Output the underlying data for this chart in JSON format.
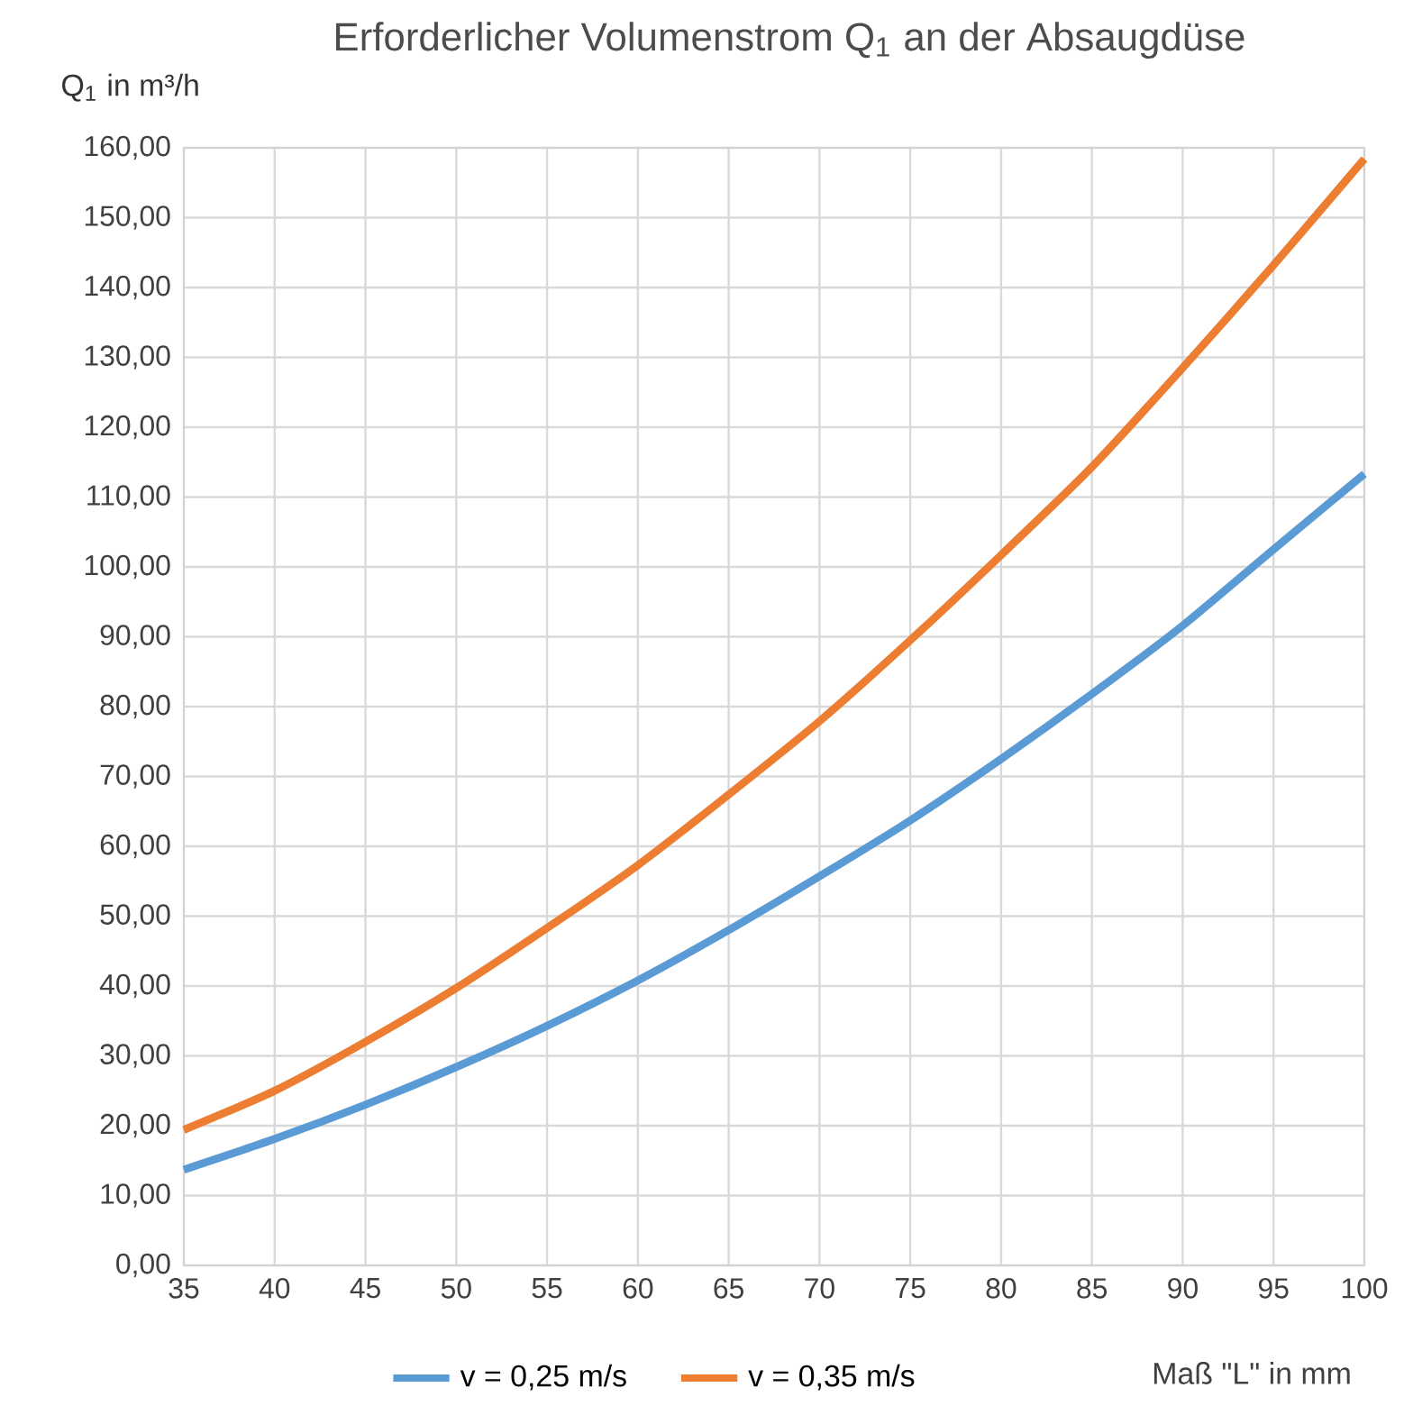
{
  "chart_data": {
    "type": "line",
    "title": "Erforderlicher Volumenstrom Q$_{1}$ an der Absaugdüse",
    "ylabel": "Q$_{1}$ in m³/h",
    "xlabel": "Maß \"L\" in mm",
    "x": [
      35,
      40,
      45,
      50,
      55,
      60,
      65,
      70,
      75,
      80,
      85,
      90,
      95,
      100
    ],
    "series": [
      {
        "name": "v = 0,25 m/s",
        "color": "#5b9bd5",
        "values": [
          13.7,
          18.1,
          23.0,
          28.4,
          34.3,
          40.8,
          48.0,
          55.7,
          63.7,
          72.5,
          81.8,
          91.6,
          102.5,
          113.3
        ]
      },
      {
        "name": "v = 0,35 m/s",
        "color": "#ed7d31",
        "values": [
          19.4,
          25.0,
          32.0,
          39.7,
          48.3,
          57.3,
          67.4,
          77.9,
          89.5,
          101.7,
          114.3,
          128.5,
          143.2,
          158.4
        ]
      }
    ],
    "xlim": [
      35,
      100
    ],
    "ylim": [
      0,
      160
    ],
    "xticks": [
      35,
      40,
      45,
      50,
      55,
      60,
      65,
      70,
      75,
      80,
      85,
      90,
      95,
      100
    ],
    "yticks": [
      {
        "value": 0,
        "label": "0,00"
      },
      {
        "value": 10,
        "label": "10,00"
      },
      {
        "value": 20,
        "label": "20,00"
      },
      {
        "value": 30,
        "label": "30,00"
      },
      {
        "value": 40,
        "label": "40,00"
      },
      {
        "value": 50,
        "label": "50,00"
      },
      {
        "value": 60,
        "label": "60,00"
      },
      {
        "value": 70,
        "label": "70,00"
      },
      {
        "value": 80,
        "label": "80,00"
      },
      {
        "value": 90,
        "label": "90,00"
      },
      {
        "value": 100,
        "label": "100,00"
      },
      {
        "value": 110,
        "label": "110,00"
      },
      {
        "value": 120,
        "label": "120,00"
      },
      {
        "value": 130,
        "label": "130,00"
      },
      {
        "value": 140,
        "label": "140,00"
      },
      {
        "value": 150,
        "label": "150,00"
      },
      {
        "value": 160,
        "label": "160,00"
      }
    ],
    "grid": true,
    "legend": "bottom",
    "marker": "none"
  }
}
